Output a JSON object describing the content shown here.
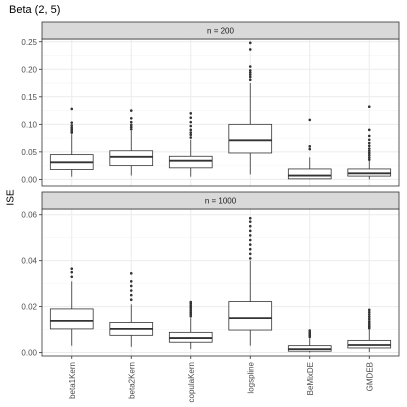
{
  "chart_data": {
    "type": "boxplot",
    "title": "Beta (2, 5)",
    "ylabel": "ISE",
    "xlabel": "",
    "categories": [
      "beta1Kern",
      "beta2Kern",
      "copulaKern",
      "logspline",
      "BeMixDE",
      "GMDEB"
    ],
    "grid": true,
    "panels": [
      {
        "label": "n = 200",
        "ylim": [
          -0.012,
          0.255
        ],
        "yticks": [
          0.0,
          0.05,
          0.1,
          0.15,
          0.2,
          0.25
        ],
        "ytick_labels": [
          "0.00",
          "0.05",
          "0.10",
          "0.15",
          "0.20",
          "0.25"
        ],
        "boxes": [
          {
            "whisker_low": 0.005,
            "q1": 0.018,
            "median": 0.031,
            "q3": 0.045,
            "whisker_high": 0.082,
            "outliers": [
              0.085,
              0.088,
              0.091,
              0.094,
              0.098,
              0.103,
              0.128
            ]
          },
          {
            "whisker_low": 0.007,
            "q1": 0.025,
            "median": 0.041,
            "q3": 0.052,
            "whisker_high": 0.088,
            "outliers": [
              0.091,
              0.095,
              0.099,
              0.104,
              0.111,
              0.125
            ]
          },
          {
            "whisker_low": 0.005,
            "q1": 0.021,
            "median": 0.034,
            "q3": 0.042,
            "whisker_high": 0.072,
            "outliers": [
              0.076,
              0.081,
              0.085,
              0.09,
              0.097,
              0.104,
              0.112,
              0.12
            ]
          },
          {
            "whisker_low": 0.009,
            "q1": 0.048,
            "median": 0.071,
            "q3": 0.1,
            "whisker_high": 0.175,
            "outliers": [
              0.181,
              0.186,
              0.19,
              0.194,
              0.198,
              0.205,
              0.236,
              0.248
            ]
          },
          {
            "whisker_low": 0.0,
            "q1": 0.001,
            "median": 0.007,
            "q3": 0.019,
            "whisker_high": 0.04,
            "outliers": [
              0.055,
              0.06,
              0.108
            ]
          },
          {
            "whisker_low": 0.0,
            "q1": 0.006,
            "median": 0.011,
            "q3": 0.019,
            "whisker_high": 0.034,
            "outliers": [
              0.036,
              0.04,
              0.044,
              0.048,
              0.052,
              0.056,
              0.061,
              0.066,
              0.072,
              0.079,
              0.09,
              0.132
            ]
          }
        ]
      },
      {
        "label": "n = 1000",
        "ylim": [
          -0.0015,
          0.0625
        ],
        "yticks": [
          0.0,
          0.02,
          0.04,
          0.06
        ],
        "ytick_labels": [
          "0.00",
          "0.02",
          "0.04",
          "0.06"
        ],
        "boxes": [
          {
            "whisker_low": 0.003,
            "q1": 0.0103,
            "median": 0.0138,
            "q3": 0.019,
            "whisker_high": 0.031,
            "outliers": [
              0.033,
              0.035,
              0.0365
            ]
          },
          {
            "whisker_low": 0.0025,
            "q1": 0.0075,
            "median": 0.0103,
            "q3": 0.0131,
            "whisker_high": 0.021,
            "outliers": [
              0.023,
              0.025,
              0.027,
              0.029,
              0.031,
              0.0345
            ]
          },
          {
            "whisker_low": 0.0015,
            "q1": 0.0045,
            "median": 0.0063,
            "q3": 0.0088,
            "whisker_high": 0.015,
            "outliers": [
              0.0158,
              0.0166,
              0.0174,
              0.0182,
              0.019,
              0.0198,
              0.0206,
              0.0214,
              0.022
            ]
          },
          {
            "whisker_low": 0.003,
            "q1": 0.0098,
            "median": 0.015,
            "q3": 0.0222,
            "whisker_high": 0.04,
            "outliers": [
              0.041,
              0.043,
              0.045,
              0.047,
              0.049,
              0.051,
              0.053,
              0.055,
              0.057,
              0.0585
            ]
          },
          {
            "whisker_low": 0.0,
            "q1": 0.0006,
            "median": 0.0015,
            "q3": 0.003,
            "whisker_high": 0.0062,
            "outliers": [
              0.0068,
              0.0074,
              0.0081,
              0.0088,
              0.0096
            ]
          },
          {
            "whisker_low": 0.0002,
            "q1": 0.002,
            "median": 0.0033,
            "q3": 0.0053,
            "whisker_high": 0.01,
            "outliers": [
              0.0106,
              0.0113,
              0.012,
              0.0128,
              0.0136,
              0.0146,
              0.0156,
              0.0166,
              0.0176,
              0.0186
            ]
          }
        ]
      }
    ]
  },
  "colors": {
    "strip_fill": "#d9d9d9",
    "grid_major": "#ebebeb",
    "grid_minor": "#f5f5f5",
    "panel_border": "#333333",
    "box_line": "#333333",
    "outlier": "#333333",
    "tick_text": "#4d4d4d"
  }
}
